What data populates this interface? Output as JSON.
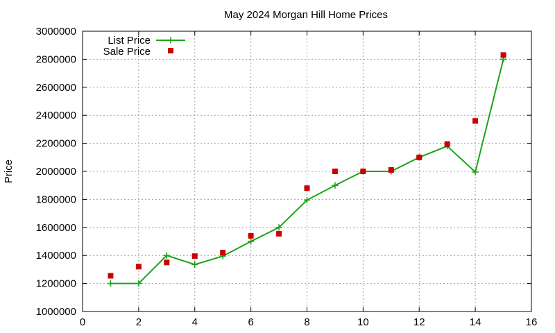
{
  "chart_data": {
    "type": "line",
    "title": "May 2024 Morgan Hill Home Prices",
    "xlabel": "",
    "ylabel": "Price",
    "xlim": [
      0,
      16
    ],
    "ylim": [
      1000000,
      3000000
    ],
    "x_ticks": [
      0,
      2,
      4,
      6,
      8,
      10,
      12,
      14,
      16
    ],
    "y_ticks": [
      1000000,
      1200000,
      1400000,
      1600000,
      1800000,
      2000000,
      2200000,
      2400000,
      2600000,
      2800000,
      3000000
    ],
    "grid": true,
    "legend_position": "top-left",
    "series": [
      {
        "name": "List Price",
        "style": "line-with-plus-markers",
        "color": "#1aa31a",
        "x": [
          1,
          2,
          3,
          4,
          5,
          6,
          7,
          8,
          9,
          10,
          11,
          12,
          13,
          14,
          15
        ],
        "values": [
          1200000,
          1200000,
          1400000,
          1335000,
          1395000,
          1500000,
          1600000,
          1795000,
          1900000,
          2000000,
          2000000,
          2100000,
          2180000,
          1995000,
          2800000
        ]
      },
      {
        "name": "Sale Price",
        "style": "square-markers",
        "color": "#cc0000",
        "x": [
          1,
          2,
          3,
          4,
          5,
          6,
          7,
          8,
          9,
          10,
          11,
          12,
          13,
          14,
          15
        ],
        "values": [
          1255000,
          1320000,
          1350000,
          1395000,
          1420000,
          1540000,
          1555000,
          1880000,
          2000000,
          2000000,
          2010000,
          2100000,
          2195000,
          2360000,
          2830000
        ]
      }
    ]
  }
}
